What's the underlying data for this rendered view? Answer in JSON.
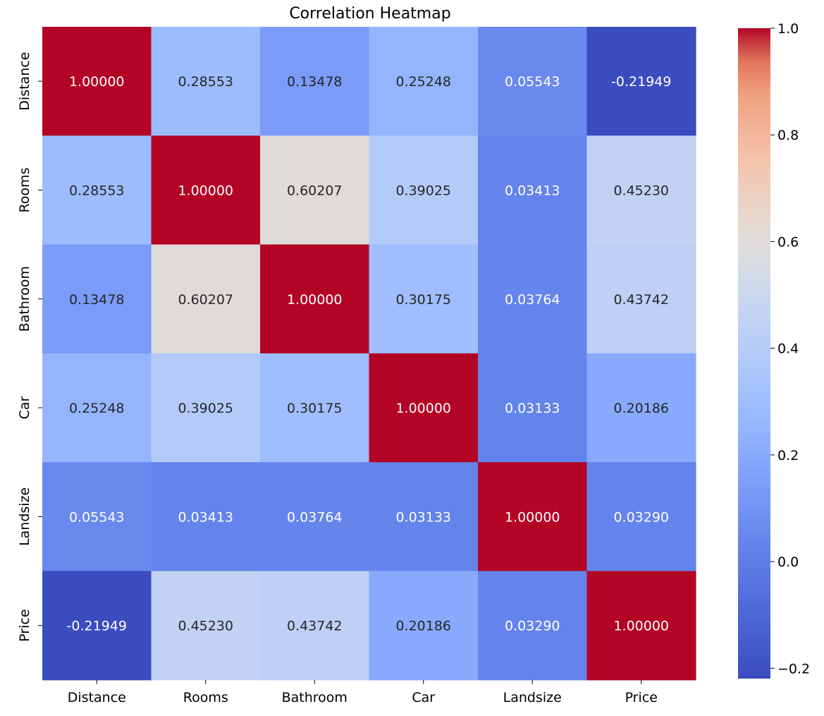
{
  "chart_data": {
    "type": "heatmap",
    "title": "Correlation Heatmap",
    "xlabel": "",
    "ylabel": "",
    "x_categories": [
      "Distance",
      "Rooms",
      "Bathroom",
      "Car",
      "Landsize",
      "Price"
    ],
    "y_categories": [
      "Distance",
      "Rooms",
      "Bathroom",
      "Car",
      "Landsize",
      "Price"
    ],
    "values": [
      [
        1.0,
        0.28553,
        0.13478,
        0.25248,
        0.05543,
        -0.21949
      ],
      [
        0.28553,
        1.0,
        0.60207,
        0.39025,
        0.03413,
        0.4523
      ],
      [
        0.13478,
        0.60207,
        1.0,
        0.30175,
        0.03764,
        0.43742
      ],
      [
        0.25248,
        0.39025,
        0.30175,
        1.0,
        0.03133,
        0.20186
      ],
      [
        0.05543,
        0.03413,
        0.03764,
        0.03133,
        1.0,
        0.0329
      ],
      [
        -0.21949,
        0.4523,
        0.43742,
        0.20186,
        0.0329,
        1.0
      ]
    ],
    "annotations": [
      [
        "1.00000",
        "0.28553",
        "0.13478",
        "0.25248",
        "0.05543",
        "-0.21949"
      ],
      [
        "0.28553",
        "1.00000",
        "0.60207",
        "0.39025",
        "0.03413",
        "0.45230"
      ],
      [
        "0.13478",
        "0.60207",
        "1.00000",
        "0.30175",
        "0.03764",
        "0.43742"
      ],
      [
        "0.25248",
        "0.39025",
        "0.30175",
        "1.00000",
        "0.03133",
        "0.20186"
      ],
      [
        "0.05543",
        "0.03413",
        "0.03764",
        "0.03133",
        "1.00000",
        "0.03290"
      ],
      [
        "-0.21949",
        "0.45230",
        "0.43742",
        "0.20186",
        "0.03290",
        "1.00000"
      ]
    ],
    "colormap": "coolwarm",
    "colorbar": {
      "vmin": -0.21949,
      "vmax": 1.0,
      "ticks": [
        -0.2,
        0.0,
        0.2,
        0.4,
        0.6,
        0.8,
        1.0
      ],
      "tick_labels": [
        "−0.2",
        "0.0",
        "0.2",
        "0.4",
        "0.6",
        "0.8",
        "1.0"
      ]
    },
    "grid": false,
    "legend": "colorbar-right"
  }
}
